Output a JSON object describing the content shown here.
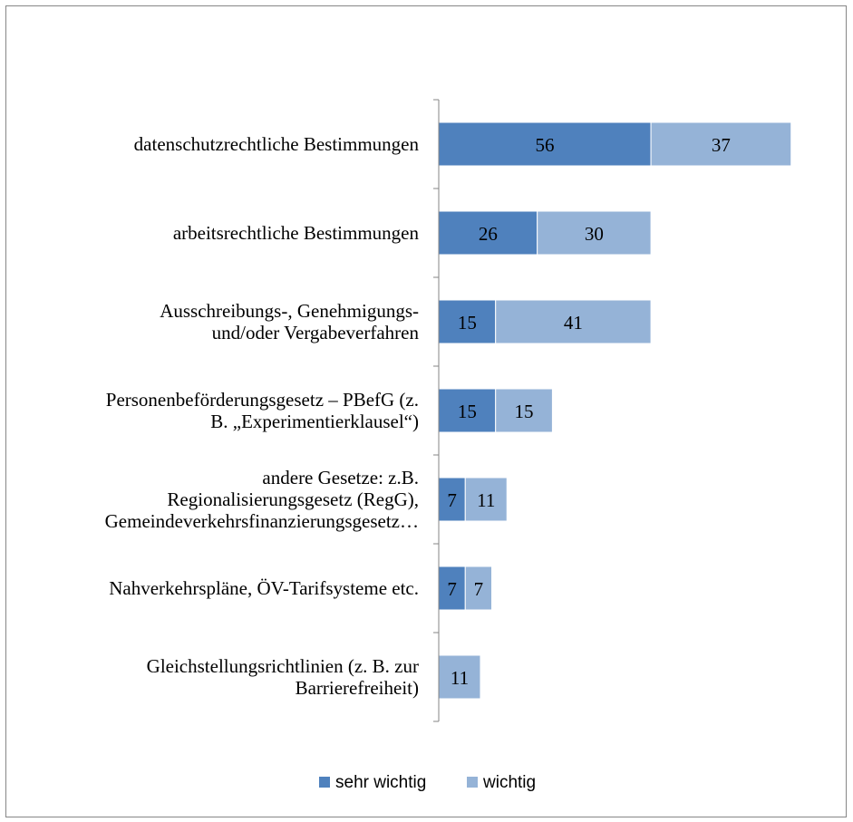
{
  "chart_data": {
    "type": "bar",
    "orientation": "horizontal",
    "stacked": true,
    "categories": [
      [
        "datenschutzrechtliche Bestimmungen"
      ],
      [
        "arbeitsrechtliche Bestimmungen"
      ],
      [
        "Ausschreibungs-, Genehmigungs-",
        "und/oder Vergabeverfahren"
      ],
      [
        "Personenbeförderungsgesetz – PBefG (z.",
        "B. „Experimentierklausel“)"
      ],
      [
        "andere Gesetze: z.B.",
        "Regionalisierungsgesetz (RegG),",
        "Gemeindeverkehrsfinanzierungsgesetz…"
      ],
      [
        "Nahverkehrspläne, ÖV-Tarifsysteme etc."
      ],
      [
        "Gleichstellungsrichtlinien (z. B. zur",
        "Barrierefreiheit)"
      ]
    ],
    "series": [
      {
        "name": "sehr wichtig",
        "color": "#4f81bd",
        "values": [
          56,
          26,
          15,
          15,
          7,
          7,
          0
        ]
      },
      {
        "name": "wichtig",
        "color": "#95b3d7",
        "values": [
          37,
          30,
          41,
          15,
          11,
          7,
          11
        ]
      }
    ],
    "data_labels": [
      [
        "56",
        "26",
        "15",
        "15",
        "7",
        "7",
        ""
      ],
      [
        "37",
        "30",
        "41",
        "15",
        "11",
        "7",
        "11"
      ]
    ],
    "xlim": [
      0,
      100
    ],
    "grid": false,
    "legend_position": "bottom"
  }
}
